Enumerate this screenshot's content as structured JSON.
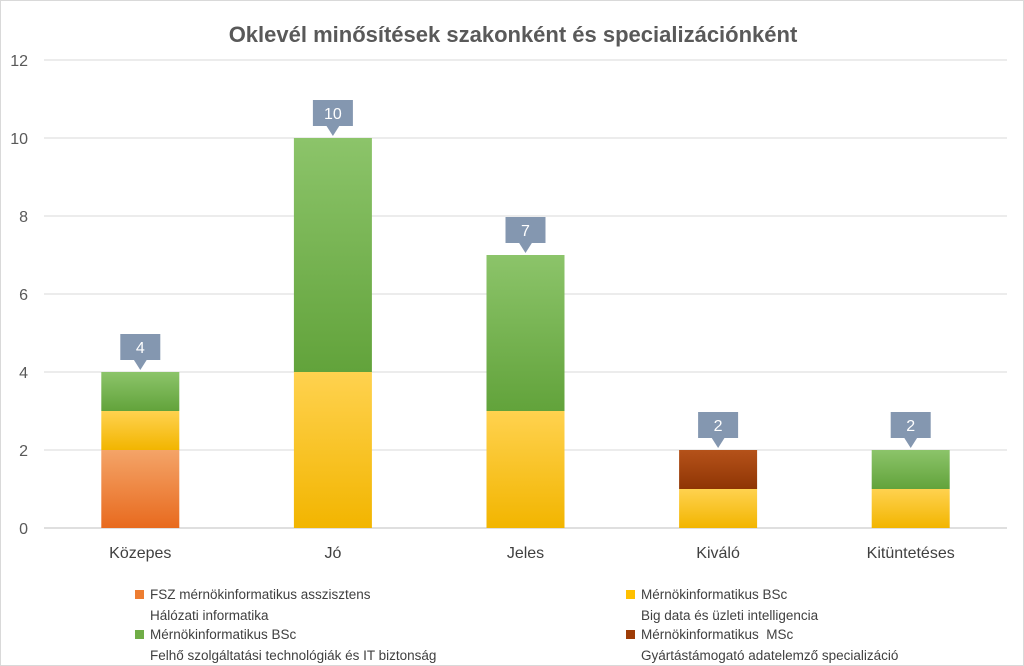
{
  "chart_data": {
    "type": "bar",
    "stacked": true,
    "title": "Oklevél minősítések szakonként és specializációnként",
    "categories": [
      "Közepes",
      "Jó",
      "Jeles",
      "Kiváló",
      "Kitüntetéses"
    ],
    "ylim": [
      0,
      12
    ],
    "yticks": [
      0,
      2,
      4,
      6,
      8,
      10,
      12
    ],
    "grid": true,
    "legend_position": "bottom",
    "series": [
      {
        "name": "FSZ mérnökinformatikus asszisztens",
        "subname": "Hálózati informatika",
        "color": "#ed7d31",
        "values": [
          2,
          0,
          0,
          0,
          0
        ]
      },
      {
        "name": "Mérnökinformatikus BSc",
        "subname": "Big data és üzleti intelligencia",
        "color": "#ffc000",
        "values": [
          1,
          4,
          3,
          1,
          1
        ]
      },
      {
        "name": "Mérnökinformatikus BSc",
        "subname": "Felhő szolgáltatási technológiák és IT biztonság",
        "color": "#70ad47",
        "values": [
          1,
          6,
          4,
          0,
          1
        ]
      },
      {
        "name": "Mérnökinformatikus  MSc",
        "subname": "Gyártástámogató adatelemző specializáció",
        "color": "#9e3c06",
        "values": [
          0,
          0,
          0,
          1,
          0
        ]
      }
    ],
    "totals": [
      4,
      10,
      7,
      2,
      2
    ],
    "callout_color": "#8497b0"
  }
}
